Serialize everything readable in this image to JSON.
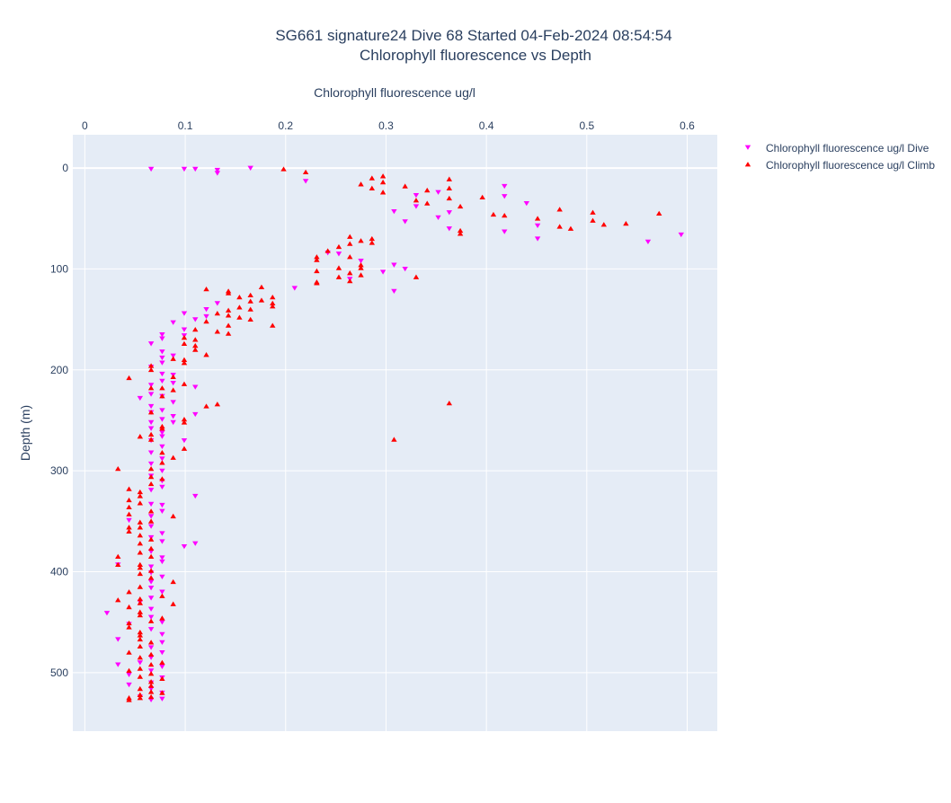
{
  "chart_data": {
    "type": "scatter",
    "title": "SG661 signature24 Dive 68 Started 04-Feb-2024 08:54:54",
    "subtitle": "Chlorophyll fluorescence vs Depth",
    "xlabel": "Chlorophyll fluorescence ug/l",
    "ylabel": "Depth (m)",
    "xlim": [
      -0.012,
      0.63
    ],
    "ylim": [
      558,
      -33
    ],
    "x_ticks": [
      0,
      0.1,
      0.2,
      0.3,
      0.4,
      0.5,
      0.6
    ],
    "x_tick_labels": [
      "0",
      "0.1",
      "0.2",
      "0.3",
      "0.4",
      "0.5",
      "0.6"
    ],
    "y_ticks": [
      0,
      100,
      200,
      300,
      400,
      500
    ],
    "y_tick_labels": [
      "0",
      "100",
      "200",
      "300",
      "400",
      "500"
    ],
    "x_axis_position": "top",
    "y_reversed": true,
    "grid": true,
    "legend_position": "top-right",
    "plot_background": "#e5ecf6",
    "series": [
      {
        "name": "Chlorophyll fluorescence ug/l Dive",
        "marker": "triangle-down",
        "color": "#ff00ff",
        "points": [
          [
            0.066,
            1
          ],
          [
            0.099,
            1
          ],
          [
            0.11,
            1
          ],
          [
            0.132,
            2
          ],
          [
            0.132,
            5
          ],
          [
            0.165,
            0
          ],
          [
            0.22,
            13
          ],
          [
            0.418,
            18
          ],
          [
            0.418,
            28
          ],
          [
            0.352,
            24
          ],
          [
            0.33,
            27
          ],
          [
            0.33,
            38
          ],
          [
            0.308,
            43
          ],
          [
            0.319,
            53
          ],
          [
            0.352,
            49
          ],
          [
            0.363,
            44
          ],
          [
            0.363,
            60
          ],
          [
            0.418,
            63
          ],
          [
            0.44,
            35
          ],
          [
            0.451,
            57
          ],
          [
            0.451,
            70
          ],
          [
            0.561,
            73
          ],
          [
            0.594,
            66
          ],
          [
            0.275,
            92
          ],
          [
            0.264,
            110
          ],
          [
            0.308,
            96
          ],
          [
            0.319,
            100
          ],
          [
            0.297,
            103
          ],
          [
            0.308,
            122
          ],
          [
            0.253,
            85
          ],
          [
            0.242,
            84
          ],
          [
            0.209,
            119
          ],
          [
            0.132,
            134
          ],
          [
            0.121,
            140
          ],
          [
            0.121,
            147
          ],
          [
            0.099,
            144
          ],
          [
            0.11,
            150
          ],
          [
            0.088,
            153
          ],
          [
            0.099,
            160
          ],
          [
            0.099,
            166
          ],
          [
            0.077,
            165
          ],
          [
            0.077,
            169
          ],
          [
            0.066,
            174
          ],
          [
            0.077,
            182
          ],
          [
            0.077,
            188
          ],
          [
            0.088,
            186
          ],
          [
            0.077,
            193
          ],
          [
            0.066,
            197
          ],
          [
            0.077,
            204
          ],
          [
            0.088,
            205
          ],
          [
            0.077,
            211
          ],
          [
            0.066,
            215
          ],
          [
            0.088,
            213
          ],
          [
            0.11,
            217
          ],
          [
            0.066,
            224
          ],
          [
            0.055,
            228
          ],
          [
            0.077,
            226
          ],
          [
            0.088,
            232
          ],
          [
            0.066,
            236
          ],
          [
            0.077,
            240
          ],
          [
            0.066,
            242
          ],
          [
            0.11,
            244
          ],
          [
            0.088,
            246
          ],
          [
            0.077,
            249
          ],
          [
            0.066,
            252
          ],
          [
            0.088,
            252
          ],
          [
            0.066,
            258
          ],
          [
            0.077,
            262
          ],
          [
            0.077,
            266
          ],
          [
            0.066,
            270
          ],
          [
            0.099,
            270
          ],
          [
            0.077,
            276
          ],
          [
            0.066,
            282
          ],
          [
            0.077,
            288
          ],
          [
            0.066,
            293
          ],
          [
            0.077,
            300
          ],
          [
            0.066,
            305
          ],
          [
            0.077,
            310
          ],
          [
            0.077,
            316
          ],
          [
            0.066,
            319
          ],
          [
            0.11,
            325
          ],
          [
            0.066,
            333
          ],
          [
            0.077,
            334
          ],
          [
            0.077,
            340
          ],
          [
            0.066,
            345
          ],
          [
            0.044,
            349
          ],
          [
            0.066,
            355
          ],
          [
            0.077,
            362
          ],
          [
            0.066,
            366
          ],
          [
            0.077,
            370
          ],
          [
            0.11,
            372
          ],
          [
            0.099,
            375
          ],
          [
            0.066,
            380
          ],
          [
            0.077,
            386
          ],
          [
            0.077,
            390
          ],
          [
            0.066,
            395
          ],
          [
            0.066,
            401
          ],
          [
            0.077,
            405
          ],
          [
            0.066,
            410
          ],
          [
            0.066,
            416
          ],
          [
            0.077,
            420
          ],
          [
            0.066,
            426
          ],
          [
            0.055,
            430
          ],
          [
            0.066,
            437
          ],
          [
            0.022,
            441
          ],
          [
            0.066,
            445
          ],
          [
            0.077,
            450
          ],
          [
            0.044,
            452
          ],
          [
            0.066,
            457
          ],
          [
            0.077,
            462
          ],
          [
            0.033,
            467
          ],
          [
            0.077,
            470
          ],
          [
            0.066,
            475
          ],
          [
            0.077,
            480
          ],
          [
            0.066,
            485
          ],
          [
            0.055,
            490
          ],
          [
            0.033,
            492
          ],
          [
            0.077,
            494
          ],
          [
            0.066,
            498
          ],
          [
            0.044,
            502
          ],
          [
            0.077,
            505
          ],
          [
            0.066,
            510
          ],
          [
            0.044,
            512
          ],
          [
            0.066,
            516
          ],
          [
            0.077,
            520
          ],
          [
            0.055,
            524
          ],
          [
            0.077,
            526
          ],
          [
            0.066,
            527
          ],
          [
            0.033,
            393
          ]
        ]
      },
      {
        "name": "Chlorophyll fluorescence ug/l Climb",
        "marker": "triangle-up",
        "color": "#ff0000",
        "points": [
          [
            0.198,
            1
          ],
          [
            0.22,
            4
          ],
          [
            0.286,
            10
          ],
          [
            0.297,
            8
          ],
          [
            0.297,
            14
          ],
          [
            0.275,
            16
          ],
          [
            0.286,
            20
          ],
          [
            0.297,
            24
          ],
          [
            0.319,
            18
          ],
          [
            0.341,
            22
          ],
          [
            0.363,
            11
          ],
          [
            0.363,
            20
          ],
          [
            0.363,
            30
          ],
          [
            0.33,
            32
          ],
          [
            0.341,
            35
          ],
          [
            0.374,
            38
          ],
          [
            0.396,
            29
          ],
          [
            0.418,
            47
          ],
          [
            0.407,
            46
          ],
          [
            0.451,
            50
          ],
          [
            0.473,
            41
          ],
          [
            0.506,
            44
          ],
          [
            0.506,
            52
          ],
          [
            0.517,
            56
          ],
          [
            0.539,
            55
          ],
          [
            0.572,
            45
          ],
          [
            0.473,
            58
          ],
          [
            0.484,
            60
          ],
          [
            0.374,
            62
          ],
          [
            0.374,
            65
          ],
          [
            0.275,
            72
          ],
          [
            0.286,
            70
          ],
          [
            0.286,
            74
          ],
          [
            0.264,
            68
          ],
          [
            0.264,
            75
          ],
          [
            0.253,
            78
          ],
          [
            0.242,
            82
          ],
          [
            0.231,
            88
          ],
          [
            0.231,
            91
          ],
          [
            0.264,
            88
          ],
          [
            0.275,
            96
          ],
          [
            0.275,
            99
          ],
          [
            0.253,
            99
          ],
          [
            0.231,
            102
          ],
          [
            0.264,
            104
          ],
          [
            0.275,
            106
          ],
          [
            0.253,
            108
          ],
          [
            0.264,
            112
          ],
          [
            0.231,
            114
          ],
          [
            0.231,
            113
          ],
          [
            0.33,
            108
          ],
          [
            0.176,
            118
          ],
          [
            0.165,
            126
          ],
          [
            0.121,
            120
          ],
          [
            0.143,
            122
          ],
          [
            0.143,
            124
          ],
          [
            0.154,
            128
          ],
          [
            0.165,
            132
          ],
          [
            0.176,
            131
          ],
          [
            0.187,
            128
          ],
          [
            0.187,
            134
          ],
          [
            0.187,
            137
          ],
          [
            0.154,
            138
          ],
          [
            0.165,
            140
          ],
          [
            0.143,
            141
          ],
          [
            0.132,
            144
          ],
          [
            0.143,
            146
          ],
          [
            0.154,
            148
          ],
          [
            0.165,
            150
          ],
          [
            0.121,
            152
          ],
          [
            0.143,
            156
          ],
          [
            0.187,
            156
          ],
          [
            0.132,
            162
          ],
          [
            0.143,
            164
          ],
          [
            0.11,
            160
          ],
          [
            0.099,
            168
          ],
          [
            0.11,
            170
          ],
          [
            0.099,
            174
          ],
          [
            0.11,
            176
          ],
          [
            0.11,
            180
          ],
          [
            0.121,
            185
          ],
          [
            0.088,
            189
          ],
          [
            0.099,
            190
          ],
          [
            0.099,
            193
          ],
          [
            0.066,
            196
          ],
          [
            0.066,
            200
          ],
          [
            0.088,
            207
          ],
          [
            0.044,
            208
          ],
          [
            0.077,
            218
          ],
          [
            0.099,
            214
          ],
          [
            0.066,
            218
          ],
          [
            0.088,
            220
          ],
          [
            0.077,
            226
          ],
          [
            0.121,
            236
          ],
          [
            0.132,
            234
          ],
          [
            0.363,
            233
          ],
          [
            0.066,
            242
          ],
          [
            0.099,
            249
          ],
          [
            0.099,
            252
          ],
          [
            0.077,
            256
          ],
          [
            0.077,
            258
          ],
          [
            0.066,
            264
          ],
          [
            0.055,
            266
          ],
          [
            0.066,
            269
          ],
          [
            0.308,
            269
          ],
          [
            0.099,
            278
          ],
          [
            0.077,
            282
          ],
          [
            0.088,
            287
          ],
          [
            0.077,
            292
          ],
          [
            0.066,
            298
          ],
          [
            0.033,
            298
          ],
          [
            0.066,
            306
          ],
          [
            0.077,
            308
          ],
          [
            0.066,
            313
          ],
          [
            0.044,
            318
          ],
          [
            0.055,
            321
          ],
          [
            0.055,
            325
          ],
          [
            0.044,
            329
          ],
          [
            0.055,
            332
          ],
          [
            0.044,
            336
          ],
          [
            0.066,
            340
          ],
          [
            0.044,
            343
          ],
          [
            0.088,
            345
          ],
          [
            0.066,
            350
          ],
          [
            0.055,
            351
          ],
          [
            0.055,
            356
          ],
          [
            0.044,
            356
          ],
          [
            0.044,
            360
          ],
          [
            0.055,
            364
          ],
          [
            0.066,
            368
          ],
          [
            0.055,
            372
          ],
          [
            0.066,
            377
          ],
          [
            0.055,
            381
          ],
          [
            0.033,
            385
          ],
          [
            0.066,
            385
          ],
          [
            0.055,
            393
          ],
          [
            0.033,
            393
          ],
          [
            0.055,
            396
          ],
          [
            0.066,
            399
          ],
          [
            0.055,
            402
          ],
          [
            0.066,
            406
          ],
          [
            0.088,
            410
          ],
          [
            0.055,
            415
          ],
          [
            0.044,
            420
          ],
          [
            0.077,
            424
          ],
          [
            0.055,
            427
          ],
          [
            0.033,
            428
          ],
          [
            0.055,
            431
          ],
          [
            0.088,
            432
          ],
          [
            0.044,
            435
          ],
          [
            0.055,
            440
          ],
          [
            0.055,
            443
          ],
          [
            0.077,
            446
          ],
          [
            0.066,
            449
          ],
          [
            0.044,
            451
          ],
          [
            0.044,
            455
          ],
          [
            0.055,
            460
          ],
          [
            0.055,
            463
          ],
          [
            0.055,
            467
          ],
          [
            0.066,
            470
          ],
          [
            0.055,
            474
          ],
          [
            0.044,
            480
          ],
          [
            0.066,
            482
          ],
          [
            0.055,
            485
          ],
          [
            0.077,
            490
          ],
          [
            0.066,
            492
          ],
          [
            0.055,
            496
          ],
          [
            0.044,
            498
          ],
          [
            0.066,
            501
          ],
          [
            0.055,
            504
          ],
          [
            0.077,
            506
          ],
          [
            0.066,
            509
          ],
          [
            0.066,
            513
          ],
          [
            0.055,
            516
          ],
          [
            0.066,
            519
          ],
          [
            0.077,
            520
          ],
          [
            0.055,
            522
          ],
          [
            0.066,
            524
          ],
          [
            0.044,
            525
          ],
          [
            0.055,
            525
          ],
          [
            0.044,
            527
          ]
        ]
      }
    ]
  }
}
